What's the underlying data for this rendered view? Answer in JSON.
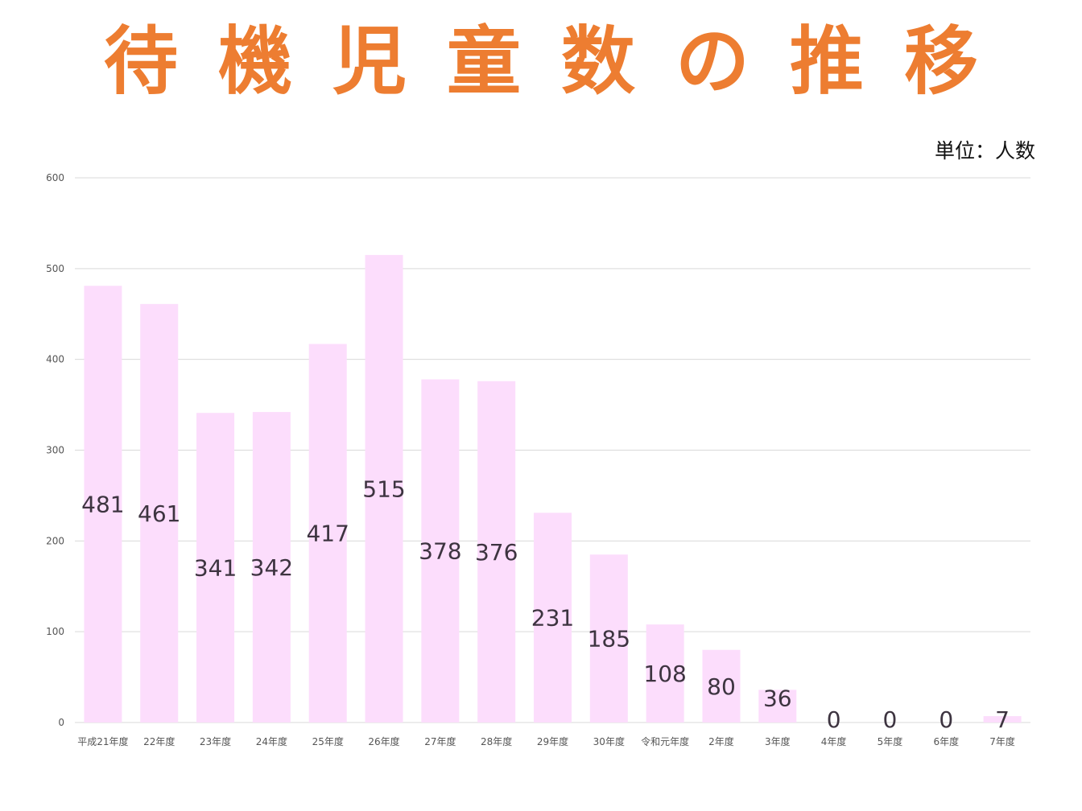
{
  "title": "待機児童数の推移",
  "unit_label": "単位：人数",
  "colors": {
    "title": "#ED7D31",
    "bar": "#FCDDFC",
    "grid": "#D9D9D9",
    "data_label": "#3D3440"
  },
  "chart_data": {
    "type": "bar",
    "title": "待機児童数の推移",
    "xlabel": "",
    "ylabel": "",
    "ylim": [
      0,
      600
    ],
    "yticks": [
      0,
      100,
      200,
      300,
      400,
      500,
      600
    ],
    "grid": true,
    "legend": "none",
    "categories": [
      "平成21年度",
      "22年度",
      "23年度",
      "24年度",
      "25年度",
      "26年度",
      "27年度",
      "28年度",
      "29年度",
      "30年度",
      "令和元年度",
      "2年度",
      "3年度",
      "4年度",
      "5年度",
      "6年度",
      "7年度"
    ],
    "values": [
      481,
      461,
      341,
      342,
      417,
      515,
      378,
      376,
      231,
      185,
      108,
      80,
      36,
      0,
      0,
      0,
      7
    ]
  }
}
